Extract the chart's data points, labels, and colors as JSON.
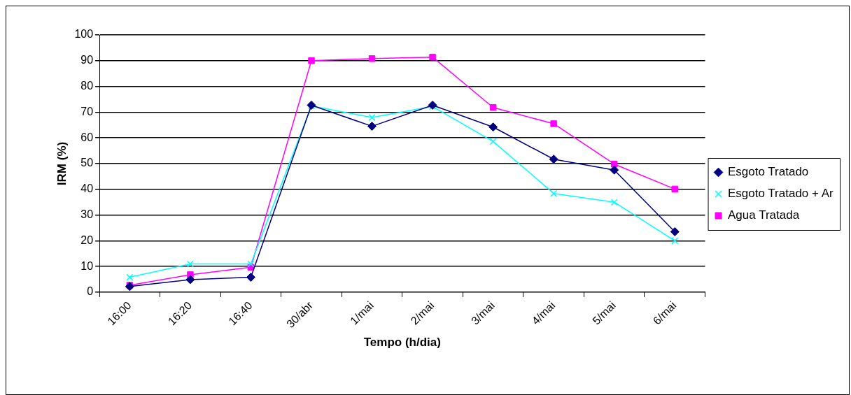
{
  "chart_data": {
    "type": "line",
    "xlabel": "Tempo (h/dia)",
    "ylabel": "IRM (%)",
    "categories": [
      "16:00",
      "16:20",
      "16:40",
      "30/abr",
      "1/mai",
      "2/mai",
      "3/mai",
      "4/mai",
      "5/mai",
      "6/mai"
    ],
    "series": [
      {
        "name": "Esgoto Tratado",
        "color": "#000080",
        "marker": "diamond",
        "values": [
          2.2,
          4.9,
          5.8,
          72.7,
          64.5,
          72.7,
          64.2,
          51.7,
          47.5,
          23.5
        ]
      },
      {
        "name": "Esgoto Tratado + Ar",
        "color": "#00ffff",
        "marker": "cross",
        "values": [
          5.8,
          11.0,
          11.0,
          72.4,
          67.9,
          72.2,
          58.6,
          38.4,
          35.0,
          20.0
        ]
      },
      {
        "name": "Agua Tratada",
        "color": "#ff00ff",
        "marker": "square",
        "values": [
          2.7,
          6.8,
          9.7,
          90.0,
          90.8,
          91.4,
          71.8,
          65.5,
          49.8,
          40.1
        ]
      }
    ],
    "ylim": [
      0,
      100
    ],
    "yticks": [
      0,
      10,
      20,
      30,
      40,
      50,
      60,
      70,
      80,
      90,
      100
    ],
    "grid": "y",
    "legend": "right",
    "line_style": "solid"
  }
}
